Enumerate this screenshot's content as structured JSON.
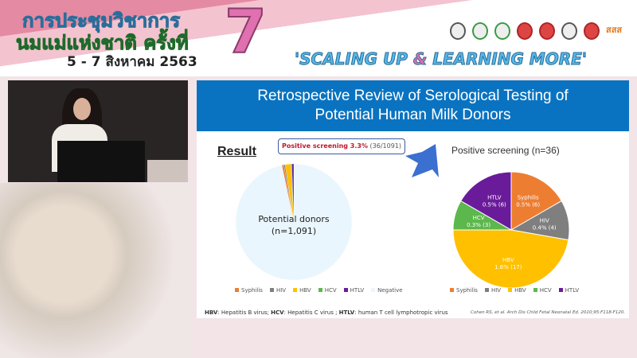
{
  "banner": {
    "thai_line1": "การประชุมวิชาการ",
    "thai_line2": "นมแม่แห่งชาติ ครั้งที่",
    "number": "7",
    "dates": "5 - 7 สิงหาคม 2563",
    "slogan_part1": "'SCALING UP ",
    "slogan_amp": "&",
    "slogan_part2": " LEARNING MORE'",
    "logo_text": "สสส"
  },
  "slide": {
    "title_line1": "Retrospective Review of Serological Testing of",
    "title_line2": "Potential Human Milk Donors",
    "result_heading": "Result",
    "callout_bold": "Positive screening 3.3%",
    "callout_rest": " (36/1091)",
    "footnote": {
      "hbv_abbr": "HBV",
      "hbv_text": ": Hepatitis B virus; ",
      "hcv_abbr": "HCV",
      "hcv_text": ": Hepatitis C virus ; ",
      "htlv_abbr": "HTLV",
      "htlv_text": ": human T cell lymphotropic virus"
    },
    "citation": "Cohen RS, et al. Arch Dis Child Fetal Neonatal Ed. 2010;95:F118-F120."
  },
  "chart_data": [
    {
      "type": "pie",
      "title": "",
      "center_label_line1": "Potential donors",
      "center_label_line2": "(n=1,091)",
      "categories": [
        "Syphilis",
        "HIV",
        "HBV",
        "HCV",
        "HTLV",
        "Negative"
      ],
      "values": [
        6,
        4,
        17,
        3,
        6,
        1055
      ],
      "colors": [
        "#ed7d31",
        "#7f7f7f",
        "#ffc000",
        "#5cb84c",
        "#6a1b9a",
        "#eaf6fd"
      ],
      "legend": "bottom"
    },
    {
      "type": "pie",
      "title": "Positive screening (n=36)",
      "categories": [
        "Syphilis",
        "HIV",
        "HBV",
        "HCV",
        "HTLV"
      ],
      "values": [
        6,
        4,
        17,
        3,
        6
      ],
      "labels": [
        "0.5% (6)",
        "0.4% (4)",
        "1.6% (17)",
        "0.3% (3)",
        "0.5% (6)"
      ],
      "colors": [
        "#ed7d31",
        "#7f7f7f",
        "#ffc000",
        "#5cb84c",
        "#6a1b9a"
      ],
      "legend": "bottom"
    }
  ]
}
